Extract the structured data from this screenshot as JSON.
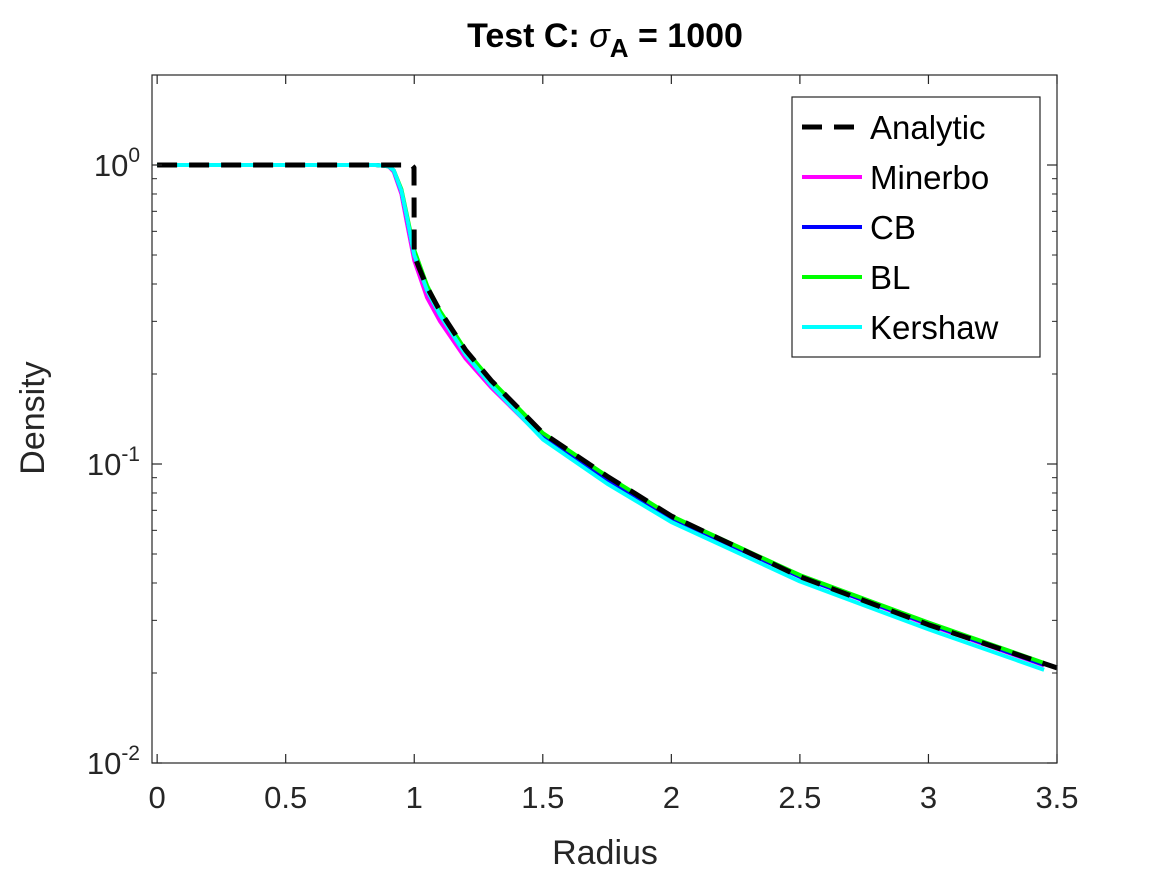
{
  "chart_data": {
    "type": "line",
    "title": "Test C: ",
    "title_symbol": "σ",
    "title_subscript": "A",
    "title_suffix": " = 1000",
    "xlabel": "Radius",
    "ylabel": "Density",
    "xlim": [
      -0.02,
      3.5
    ],
    "ylim": [
      0.01,
      2.0
    ],
    "yscale": "log",
    "grid": false,
    "legend_position": "top-right",
    "xticks": [
      0,
      0.5,
      1,
      1.5,
      2,
      2.5,
      3,
      3.5
    ],
    "xtick_labels": [
      "0",
      "0.5",
      "1",
      "1.5",
      "2",
      "2.5",
      "3",
      "3.5"
    ],
    "yticks": [
      0.01,
      0.1,
      1
    ],
    "ytick_labels": [
      {
        "base": "10",
        "exp": "-2"
      },
      {
        "base": "10",
        "exp": "-1"
      },
      {
        "base": "10",
        "exp": "0"
      }
    ],
    "series": [
      {
        "name": "Minerbo",
        "color": "#ff00ff",
        "dash": "solid",
        "width": 4,
        "x": [
          0,
          0.5,
          0.85,
          0.9,
          0.92,
          0.95,
          0.97,
          1.0,
          1.05,
          1.1,
          1.2,
          1.3,
          1.5,
          1.75,
          2.0,
          2.5,
          3.0,
          3.45
        ],
        "y": [
          1.0,
          1.0,
          1.0,
          0.99,
          0.95,
          0.8,
          0.65,
          0.48,
          0.36,
          0.3,
          0.225,
          0.18,
          0.122,
          0.088,
          0.066,
          0.042,
          0.029,
          0.0212
        ]
      },
      {
        "name": "CB",
        "color": "#0000ff",
        "dash": "solid",
        "width": 4,
        "x": [
          0,
          0.5,
          0.85,
          0.9,
          0.92,
          0.95,
          0.97,
          1.0,
          1.05,
          1.1,
          1.2,
          1.3,
          1.5,
          1.75,
          2.0,
          2.5,
          3.0,
          3.45
        ],
        "y": [
          1.0,
          1.0,
          1.0,
          0.99,
          0.96,
          0.82,
          0.68,
          0.5,
          0.38,
          0.315,
          0.235,
          0.185,
          0.124,
          0.089,
          0.066,
          0.042,
          0.0292,
          0.0213
        ]
      },
      {
        "name": "BL",
        "color": "#00ff00",
        "dash": "solid",
        "width": 4,
        "x": [
          0,
          0.5,
          0.85,
          0.9,
          0.92,
          0.95,
          0.97,
          1.0,
          1.05,
          1.1,
          1.2,
          1.3,
          1.5,
          1.75,
          2.0,
          2.5,
          3.0,
          3.45
        ],
        "y": [
          1.0,
          1.0,
          1.0,
          0.99,
          0.96,
          0.83,
          0.69,
          0.52,
          0.395,
          0.325,
          0.24,
          0.19,
          0.127,
          0.091,
          0.067,
          0.0425,
          0.0295,
          0.0216
        ]
      },
      {
        "name": "Kershaw",
        "color": "#00ffff",
        "dash": "solid",
        "width": 4,
        "x": [
          0,
          0.5,
          0.85,
          0.9,
          0.92,
          0.95,
          0.97,
          1.0,
          1.05,
          1.1,
          1.2,
          1.3,
          1.5,
          1.75,
          2.0,
          2.5,
          3.0,
          3.45
        ],
        "y": [
          1.0,
          1.0,
          1.0,
          0.99,
          0.96,
          0.82,
          0.68,
          0.5,
          0.38,
          0.315,
          0.232,
          0.183,
          0.121,
          0.086,
          0.064,
          0.0405,
          0.028,
          0.0205
        ]
      },
      {
        "name": "Analytic",
        "color": "#000000",
        "dash": "dashed",
        "width": 5,
        "x": [
          0,
          0.99,
          0.999,
          1.0,
          1.02,
          1.05,
          1.1,
          1.2,
          1.3,
          1.5,
          1.75,
          2.0,
          2.5,
          3.0,
          3.5
        ],
        "y": [
          1.0,
          1.0,
          0.98,
          0.5,
          0.45,
          0.39,
          0.325,
          0.24,
          0.19,
          0.127,
          0.091,
          0.067,
          0.042,
          0.029,
          0.0208
        ]
      }
    ],
    "legend_order": [
      "Analytic",
      "Minerbo",
      "CB",
      "BL",
      "Kershaw"
    ]
  }
}
